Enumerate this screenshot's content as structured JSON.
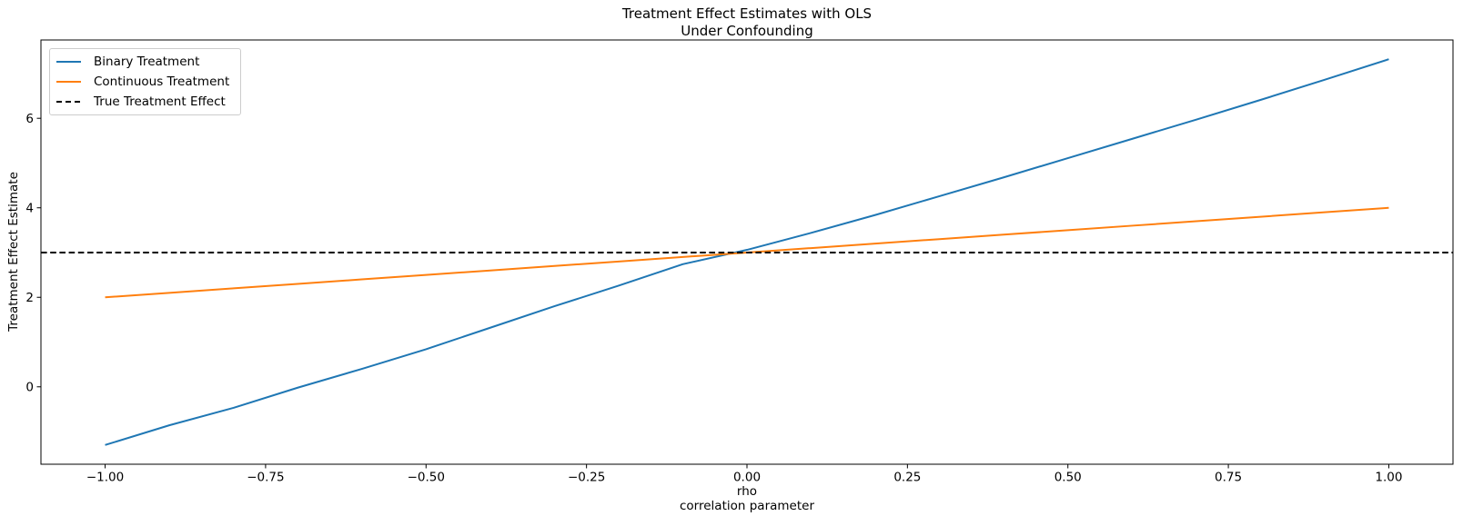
{
  "figure": {
    "title": "Treatment Effect Estimates with OLS\nUnder Confounding",
    "xlabel": "rho\ncorrelation parameter",
    "ylabel": "Treatment Effect Estimate"
  },
  "legend": {
    "position": "upper left",
    "items": [
      {
        "label": "Binary Treatment",
        "color": "#1f77b4",
        "line_style": "solid"
      },
      {
        "label": "Continuous Treatment",
        "color": "#ff7f0e",
        "line_style": "solid"
      },
      {
        "label": "True Treatment Effect",
        "color": "#000000",
        "line_style": "dashed"
      }
    ]
  },
  "chart_data": {
    "type": "line",
    "title": "Treatment Effect Estimates with OLS\nUnder Confounding",
    "xlabel": "rho\ncorrelation parameter",
    "ylabel": "Treatment Effect Estimate",
    "grid": false,
    "legend_position": "upper left",
    "xlim": [
      -1.1,
      1.1
    ],
    "ylim": [
      -1.73,
      7.75
    ],
    "x_ticks": [
      -1.0,
      -0.75,
      -0.5,
      -0.25,
      0.0,
      0.25,
      0.5,
      0.75,
      1.0
    ],
    "x_tick_labels": [
      "−1.00",
      "−0.75",
      "−0.50",
      "−0.25",
      "0.00",
      "0.25",
      "0.50",
      "0.75",
      "1.00"
    ],
    "y_ticks": [
      0,
      2,
      4,
      6
    ],
    "y_tick_labels": [
      "0",
      "2",
      "4",
      "6"
    ],
    "x": [
      -1.0,
      -0.9,
      -0.8,
      -0.7,
      -0.6,
      -0.5,
      -0.4,
      -0.3,
      -0.2,
      -0.1,
      0.0,
      0.1,
      0.2,
      0.3,
      0.4,
      0.5,
      0.6,
      0.7,
      0.8,
      0.9,
      1.0
    ],
    "series": [
      {
        "name": "Binary Treatment",
        "color": "#1f77b4",
        "line_style": "solid",
        "values": [
          -1.3,
          -0.86,
          -0.47,
          -0.02,
          0.4,
          0.84,
          1.32,
          1.8,
          2.26,
          2.74,
          3.06,
          3.44,
          3.84,
          4.26,
          4.68,
          5.11,
          5.54,
          5.97,
          6.41,
          6.86,
          7.32
        ]
      },
      {
        "name": "Continuous Treatment",
        "color": "#ff7f0e",
        "line_style": "solid",
        "values": [
          2.0,
          2.1,
          2.2,
          2.3,
          2.4,
          2.5,
          2.6,
          2.7,
          2.8,
          2.9,
          3.0,
          3.1,
          3.2,
          3.3,
          3.4,
          3.5,
          3.6,
          3.7,
          3.8,
          3.9,
          4.0
        ]
      }
    ],
    "reference_line": {
      "name": "True Treatment Effect",
      "y": 3.0,
      "color": "#000000",
      "line_style": "dashed"
    }
  }
}
